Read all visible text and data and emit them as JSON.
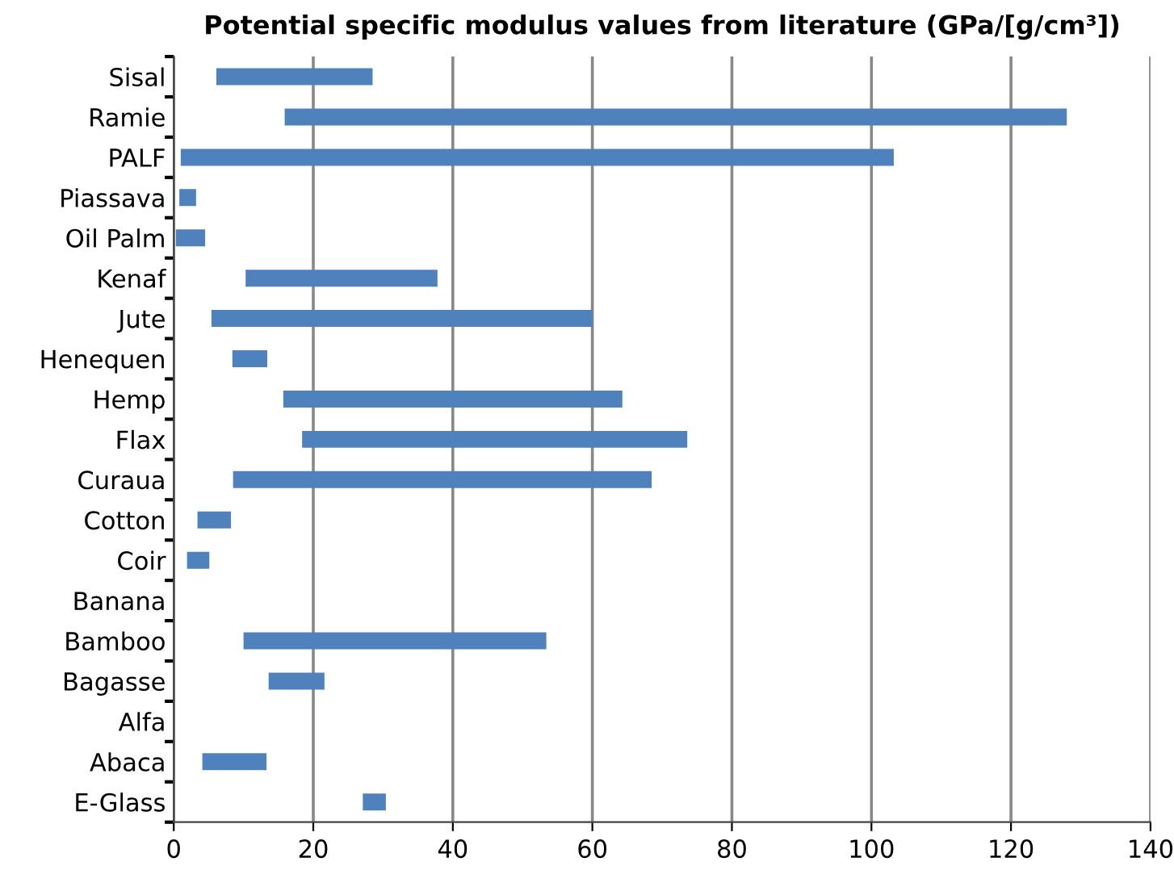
{
  "chart_data": {
    "type": "bar",
    "orientation": "horizontal",
    "title": "Potential specific modulus values from literature (GPa/[g/cm³])",
    "categories": [
      "Sisal",
      "Ramie",
      "PALF",
      "Piassava",
      "Oil Palm",
      "Kenaf",
      "Jute",
      "Henequen",
      "Hemp",
      "Flax",
      "Curaua",
      "Cotton",
      "Coir",
      "Banana",
      "Bamboo",
      "Bagasse",
      "Alfa",
      "Abaca",
      "E-Glass"
    ],
    "base": [
      6.1,
      15.9,
      1.0,
      0.8,
      0.3,
      10.3,
      5.4,
      8.4,
      15.7,
      18.4,
      8.5,
      3.4,
      1.9,
      null,
      10.0,
      13.6,
      null,
      4.1,
      27.1
    ],
    "values": [
      22.4,
      112.1,
      102.2,
      2.4,
      4.2,
      27.5,
      54.6,
      5.0,
      48.6,
      55.2,
      60.0,
      4.8,
      3.2,
      null,
      43.4,
      8.0,
      null,
      9.2,
      3.3
    ],
    "color": "#4f81bd",
    "xlim": [
      0,
      140
    ],
    "xticks": [
      0,
      20,
      40,
      60,
      80,
      100,
      120,
      140
    ],
    "grid": "x",
    "legend": false
  }
}
